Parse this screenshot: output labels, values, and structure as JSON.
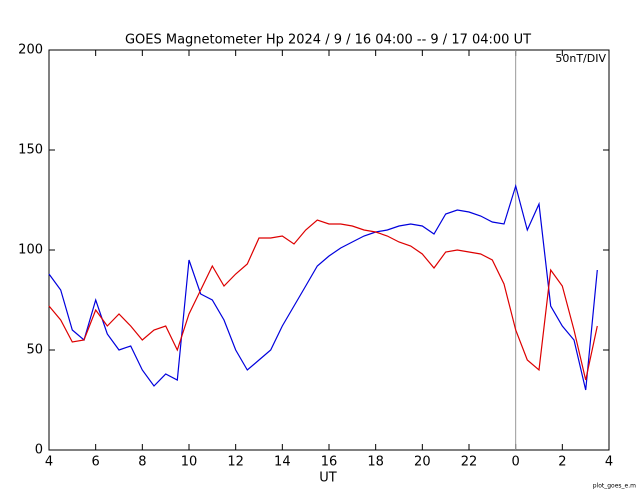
{
  "chart_data": {
    "type": "line",
    "title": "GOES Magnetometer Hp   2024 /  9 / 16   04:00 --  9 / 17   04:00   UT",
    "annotation": "50nT/DIV",
    "footer": "plot_goes_e.m",
    "xlabel": "UT",
    "xlim": [
      4,
      28
    ],
    "ylim": [
      0,
      200
    ],
    "xticks": [
      4,
      6,
      8,
      10,
      12,
      14,
      16,
      18,
      20,
      22,
      {
        "value": 24,
        "label": "0"
      },
      {
        "value": 26,
        "label": "2"
      },
      {
        "value": 28,
        "label": "4"
      }
    ],
    "yticks": [
      0,
      50,
      100,
      150,
      200
    ],
    "vline": 24,
    "x": [
      4.0,
      4.5,
      5.0,
      5.5,
      6.0,
      6.5,
      7.0,
      7.5,
      8.0,
      8.5,
      9.0,
      9.5,
      10.0,
      10.5,
      11.0,
      11.5,
      12.0,
      12.5,
      13.0,
      13.5,
      14.0,
      14.5,
      15.0,
      15.5,
      16.0,
      16.5,
      17.0,
      17.5,
      18.0,
      18.5,
      19.0,
      19.5,
      20.0,
      20.5,
      21.0,
      21.5,
      22.0,
      22.5,
      23.0,
      23.5,
      24.0,
      24.5,
      25.0,
      25.5,
      26.0,
      26.5,
      27.0,
      27.5
    ],
    "series": [
      {
        "name": "Hp blue",
        "color": "#0000dd",
        "values": [
          88,
          80,
          60,
          55,
          75,
          58,
          50,
          52,
          40,
          32,
          38,
          35,
          95,
          78,
          75,
          65,
          50,
          40,
          45,
          50,
          62,
          72,
          82,
          92,
          97,
          101,
          104,
          107,
          109,
          110,
          112,
          113,
          112,
          108,
          118,
          120,
          119,
          117,
          114,
          113,
          132,
          110,
          123,
          72,
          62,
          55,
          30,
          90
        ]
      },
      {
        "name": "Hp red",
        "color": "#dd0000",
        "values": [
          72,
          65,
          54,
          55,
          70,
          62,
          68,
          62,
          55,
          60,
          62,
          50,
          68,
          80,
          92,
          82,
          88,
          93,
          106,
          106,
          107,
          103,
          110,
          115,
          113,
          113,
          112,
          110,
          109,
          107,
          104,
          102,
          98,
          91,
          99,
          100,
          99,
          98,
          95,
          83,
          60,
          45,
          40,
          90,
          82,
          60,
          35,
          62
        ]
      }
    ]
  }
}
